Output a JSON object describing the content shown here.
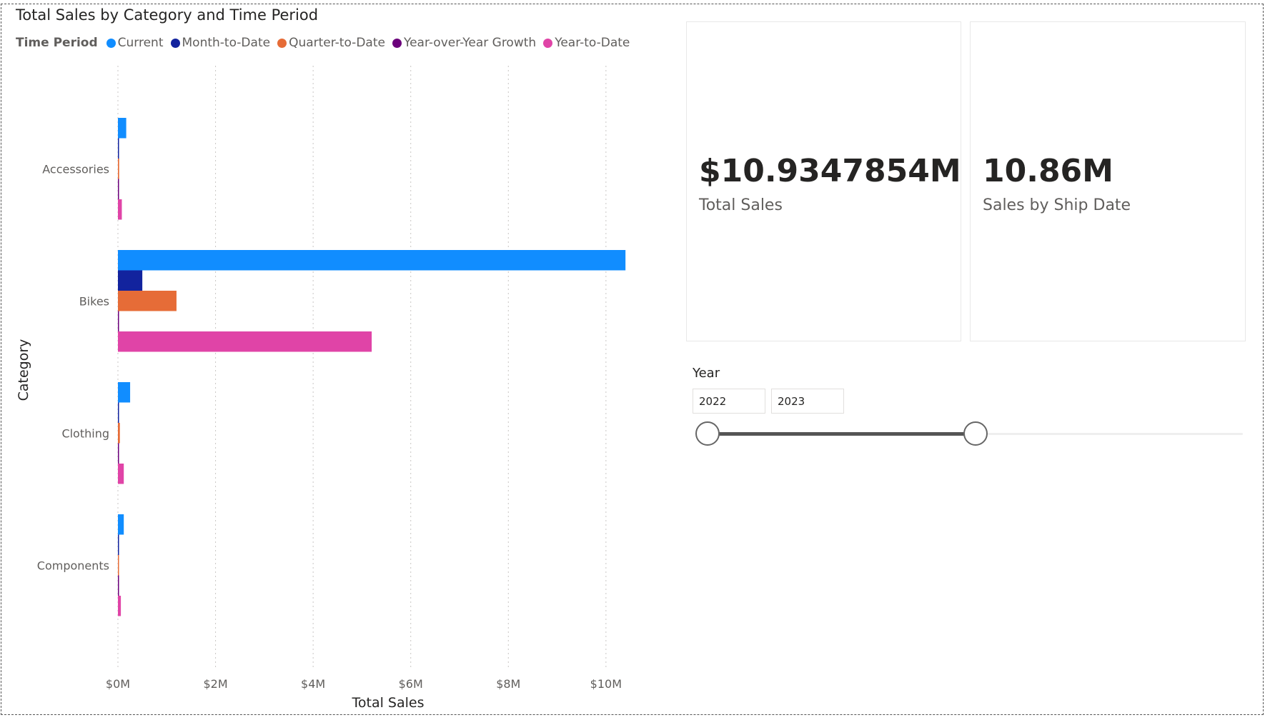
{
  "chart_data": {
    "type": "bar",
    "orientation": "horizontal",
    "title": "Total Sales by Category and Time Period",
    "legend_title": "Time Period",
    "xlabel": "Total Sales",
    "ylabel": "Category",
    "categories": [
      "Accessories",
      "Bikes",
      "Clothing",
      "Components"
    ],
    "xlim": [
      0,
      10500000
    ],
    "ticks": [
      {
        "value": 0,
        "label": "$0M"
      },
      {
        "value": 2000000,
        "label": "$2M"
      },
      {
        "value": 4000000,
        "label": "$4M"
      },
      {
        "value": 6000000,
        "label": "$6M"
      },
      {
        "value": 8000000,
        "label": "$8M"
      },
      {
        "value": 10000000,
        "label": "$10M"
      }
    ],
    "grid": true,
    "legend_position": "top-left",
    "series": [
      {
        "name": "Current",
        "color": "#118DFF",
        "values": [
          170000,
          10400000,
          250000,
          120000
        ]
      },
      {
        "name": "Month-to-Date",
        "color": "#12239E",
        "values": [
          10000,
          500000,
          15000,
          8000
        ]
      },
      {
        "name": "Quarter-to-Date",
        "color": "#E66C37",
        "values": [
          25000,
          1200000,
          40000,
          20000
        ]
      },
      {
        "name": "Year-over-Year Growth",
        "color": "#6B007B",
        "values": [
          5000,
          10000,
          5000,
          5000
        ]
      },
      {
        "name": "Year-to-Date",
        "color": "#E044A7",
        "values": [
          80000,
          5200000,
          120000,
          60000
        ]
      }
    ]
  },
  "cards": {
    "total_sales": {
      "value": "$10.9347854M",
      "label": "Total Sales"
    },
    "ship_date": {
      "value": "10.86M",
      "label": "Sales by Ship Date"
    }
  },
  "slicer": {
    "title": "Year",
    "start_value": "2022",
    "end_value": "2023",
    "range_fill_fraction": 0.5,
    "colors": {
      "track": "#eeeeee",
      "fill": "#555555",
      "handle_border": "#666666"
    }
  }
}
